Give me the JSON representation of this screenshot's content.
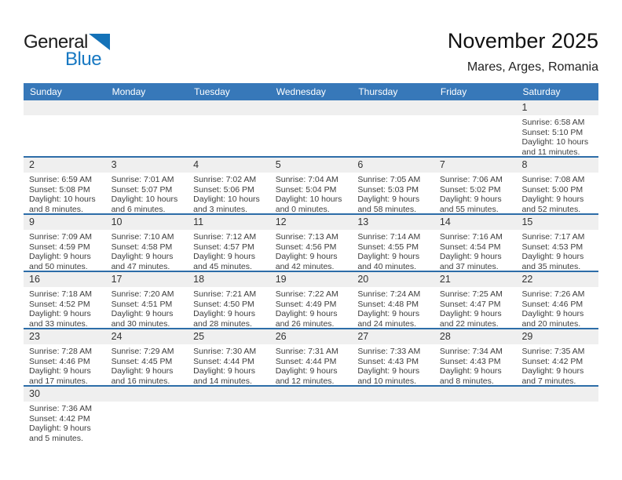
{
  "logo": {
    "part1": "General",
    "part2": "Blue"
  },
  "header": {
    "title": "November 2025",
    "subtitle": "Mares, Arges, Romania"
  },
  "colors": {
    "header_bar": "#3778b9",
    "week_divider": "#2d6da8",
    "day_band": "#efefef",
    "logo_blue": "#1778c2",
    "logo_triangle": "#1472b8"
  },
  "weekdays": [
    "Sunday",
    "Monday",
    "Tuesday",
    "Wednesday",
    "Thursday",
    "Friday",
    "Saturday"
  ],
  "weeks": [
    [
      null,
      null,
      null,
      null,
      null,
      null,
      {
        "day": "1",
        "sunrise": "Sunrise: 6:58 AM",
        "sunset": "Sunset: 5:10 PM",
        "daylight_line1": "Daylight: 10 hours",
        "daylight_line2": "and 11 minutes."
      }
    ],
    [
      {
        "day": "2",
        "sunrise": "Sunrise: 6:59 AM",
        "sunset": "Sunset: 5:08 PM",
        "daylight_line1": "Daylight: 10 hours",
        "daylight_line2": "and 8 minutes."
      },
      {
        "day": "3",
        "sunrise": "Sunrise: 7:01 AM",
        "sunset": "Sunset: 5:07 PM",
        "daylight_line1": "Daylight: 10 hours",
        "daylight_line2": "and 6 minutes."
      },
      {
        "day": "4",
        "sunrise": "Sunrise: 7:02 AM",
        "sunset": "Sunset: 5:06 PM",
        "daylight_line1": "Daylight: 10 hours",
        "daylight_line2": "and 3 minutes."
      },
      {
        "day": "5",
        "sunrise": "Sunrise: 7:04 AM",
        "sunset": "Sunset: 5:04 PM",
        "daylight_line1": "Daylight: 10 hours",
        "daylight_line2": "and 0 minutes."
      },
      {
        "day": "6",
        "sunrise": "Sunrise: 7:05 AM",
        "sunset": "Sunset: 5:03 PM",
        "daylight_line1": "Daylight: 9 hours",
        "daylight_line2": "and 58 minutes."
      },
      {
        "day": "7",
        "sunrise": "Sunrise: 7:06 AM",
        "sunset": "Sunset: 5:02 PM",
        "daylight_line1": "Daylight: 9 hours",
        "daylight_line2": "and 55 minutes."
      },
      {
        "day": "8",
        "sunrise": "Sunrise: 7:08 AM",
        "sunset": "Sunset: 5:00 PM",
        "daylight_line1": "Daylight: 9 hours",
        "daylight_line2": "and 52 minutes."
      }
    ],
    [
      {
        "day": "9",
        "sunrise": "Sunrise: 7:09 AM",
        "sunset": "Sunset: 4:59 PM",
        "daylight_line1": "Daylight: 9 hours",
        "daylight_line2": "and 50 minutes."
      },
      {
        "day": "10",
        "sunrise": "Sunrise: 7:10 AM",
        "sunset": "Sunset: 4:58 PM",
        "daylight_line1": "Daylight: 9 hours",
        "daylight_line2": "and 47 minutes."
      },
      {
        "day": "11",
        "sunrise": "Sunrise: 7:12 AM",
        "sunset": "Sunset: 4:57 PM",
        "daylight_line1": "Daylight: 9 hours",
        "daylight_line2": "and 45 minutes."
      },
      {
        "day": "12",
        "sunrise": "Sunrise: 7:13 AM",
        "sunset": "Sunset: 4:56 PM",
        "daylight_line1": "Daylight: 9 hours",
        "daylight_line2": "and 42 minutes."
      },
      {
        "day": "13",
        "sunrise": "Sunrise: 7:14 AM",
        "sunset": "Sunset: 4:55 PM",
        "daylight_line1": "Daylight: 9 hours",
        "daylight_line2": "and 40 minutes."
      },
      {
        "day": "14",
        "sunrise": "Sunrise: 7:16 AM",
        "sunset": "Sunset: 4:54 PM",
        "daylight_line1": "Daylight: 9 hours",
        "daylight_line2": "and 37 minutes."
      },
      {
        "day": "15",
        "sunrise": "Sunrise: 7:17 AM",
        "sunset": "Sunset: 4:53 PM",
        "daylight_line1": "Daylight: 9 hours",
        "daylight_line2": "and 35 minutes."
      }
    ],
    [
      {
        "day": "16",
        "sunrise": "Sunrise: 7:18 AM",
        "sunset": "Sunset: 4:52 PM",
        "daylight_line1": "Daylight: 9 hours",
        "daylight_line2": "and 33 minutes."
      },
      {
        "day": "17",
        "sunrise": "Sunrise: 7:20 AM",
        "sunset": "Sunset: 4:51 PM",
        "daylight_line1": "Daylight: 9 hours",
        "daylight_line2": "and 30 minutes."
      },
      {
        "day": "18",
        "sunrise": "Sunrise: 7:21 AM",
        "sunset": "Sunset: 4:50 PM",
        "daylight_line1": "Daylight: 9 hours",
        "daylight_line2": "and 28 minutes."
      },
      {
        "day": "19",
        "sunrise": "Sunrise: 7:22 AM",
        "sunset": "Sunset: 4:49 PM",
        "daylight_line1": "Daylight: 9 hours",
        "daylight_line2": "and 26 minutes."
      },
      {
        "day": "20",
        "sunrise": "Sunrise: 7:24 AM",
        "sunset": "Sunset: 4:48 PM",
        "daylight_line1": "Daylight: 9 hours",
        "daylight_line2": "and 24 minutes."
      },
      {
        "day": "21",
        "sunrise": "Sunrise: 7:25 AM",
        "sunset": "Sunset: 4:47 PM",
        "daylight_line1": "Daylight: 9 hours",
        "daylight_line2": "and 22 minutes."
      },
      {
        "day": "22",
        "sunrise": "Sunrise: 7:26 AM",
        "sunset": "Sunset: 4:46 PM",
        "daylight_line1": "Daylight: 9 hours",
        "daylight_line2": "and 20 minutes."
      }
    ],
    [
      {
        "day": "23",
        "sunrise": "Sunrise: 7:28 AM",
        "sunset": "Sunset: 4:46 PM",
        "daylight_line1": "Daylight: 9 hours",
        "daylight_line2": "and 17 minutes."
      },
      {
        "day": "24",
        "sunrise": "Sunrise: 7:29 AM",
        "sunset": "Sunset: 4:45 PM",
        "daylight_line1": "Daylight: 9 hours",
        "daylight_line2": "and 16 minutes."
      },
      {
        "day": "25",
        "sunrise": "Sunrise: 7:30 AM",
        "sunset": "Sunset: 4:44 PM",
        "daylight_line1": "Daylight: 9 hours",
        "daylight_line2": "and 14 minutes."
      },
      {
        "day": "26",
        "sunrise": "Sunrise: 7:31 AM",
        "sunset": "Sunset: 4:44 PM",
        "daylight_line1": "Daylight: 9 hours",
        "daylight_line2": "and 12 minutes."
      },
      {
        "day": "27",
        "sunrise": "Sunrise: 7:33 AM",
        "sunset": "Sunset: 4:43 PM",
        "daylight_line1": "Daylight: 9 hours",
        "daylight_line2": "and 10 minutes."
      },
      {
        "day": "28",
        "sunrise": "Sunrise: 7:34 AM",
        "sunset": "Sunset: 4:43 PM",
        "daylight_line1": "Daylight: 9 hours",
        "daylight_line2": "and 8 minutes."
      },
      {
        "day": "29",
        "sunrise": "Sunrise: 7:35 AM",
        "sunset": "Sunset: 4:42 PM",
        "daylight_line1": "Daylight: 9 hours",
        "daylight_line2": "and 7 minutes."
      }
    ],
    [
      {
        "day": "30",
        "sunrise": "Sunrise: 7:36 AM",
        "sunset": "Sunset: 4:42 PM",
        "daylight_line1": "Daylight: 9 hours",
        "daylight_line2": "and 5 minutes."
      },
      null,
      null,
      null,
      null,
      null,
      null
    ]
  ]
}
